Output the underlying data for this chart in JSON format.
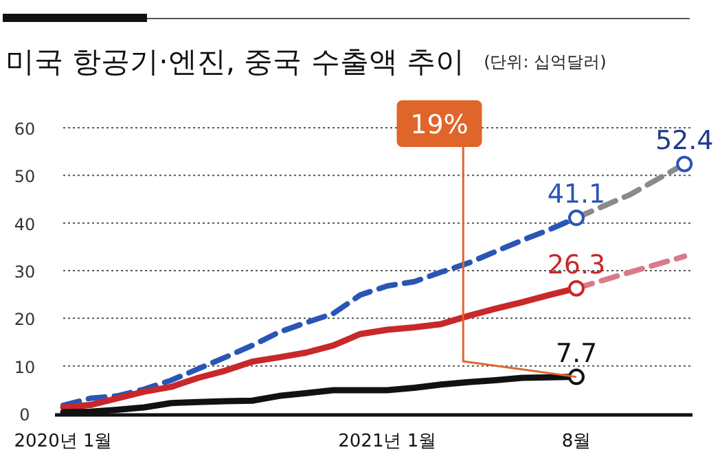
{
  "chart_data": {
    "type": "line",
    "title": "미국 항공기·엔진, 중국 수출액 추이",
    "subtitle": "(단위: 십억달러)",
    "categories": [
      "2020년 1월",
      null,
      null,
      null,
      null,
      null,
      null,
      null,
      null,
      null,
      null,
      null,
      "2021년 1월",
      null,
      null,
      null,
      null,
      null,
      null,
      "8월",
      null,
      null,
      null,
      null
    ],
    "ylim": [
      0,
      60
    ],
    "yticks": [
      0,
      10,
      20,
      30,
      40,
      50,
      60
    ],
    "grid": "y",
    "annotations": [
      {
        "text": "19%",
        "x": "8월",
        "y": 7.7
      }
    ],
    "series": [
      {
        "color": "#2a55b5",
        "line_style": "dashed",
        "values": [
          1.7,
          3.2,
          3.7,
          5.1,
          7.0,
          9.4,
          11.8,
          14.3,
          17.1,
          19.1,
          21.0,
          24.9,
          26.8,
          27.7,
          29.7,
          31.6,
          34.0,
          36.4,
          38.6,
          41.1,
          null,
          null,
          null,
          null
        ],
        "value_labels": [
          null,
          null,
          null,
          null,
          null,
          null,
          null,
          null,
          null,
          null,
          null,
          null,
          null,
          null,
          null,
          null,
          null,
          null,
          null,
          "41.1",
          null,
          null,
          null,
          null
        ]
      },
      {
        "color": "#8a8a8a",
        "line_style": "dashed",
        "values": [
          null,
          null,
          null,
          null,
          null,
          null,
          null,
          null,
          null,
          null,
          null,
          null,
          null,
          null,
          null,
          null,
          null,
          null,
          null,
          41.1,
          null,
          46.0,
          null,
          52.4
        ],
        "value_labels": [
          null,
          null,
          null,
          null,
          null,
          null,
          null,
          null,
          null,
          null,
          null,
          null,
          null,
          null,
          null,
          null,
          null,
          null,
          null,
          null,
          null,
          null,
          null,
          "52.4"
        ]
      },
      {
        "color": "#c8282a",
        "line_style": "solid",
        "values": [
          1.3,
          1.8,
          3.2,
          4.6,
          5.6,
          7.5,
          9.0,
          10.9,
          11.8,
          12.8,
          14.3,
          16.7,
          17.6,
          18.1,
          18.8,
          20.5,
          22.0,
          23.4,
          24.9,
          26.3,
          null,
          null,
          null,
          null
        ],
        "value_labels": [
          null,
          null,
          null,
          null,
          null,
          null,
          null,
          null,
          null,
          null,
          null,
          null,
          null,
          null,
          null,
          null,
          null,
          null,
          null,
          "26.3",
          null,
          null,
          null,
          null
        ]
      },
      {
        "color": "#d97a8a",
        "line_style": "dashed",
        "values": [
          null,
          null,
          null,
          null,
          null,
          null,
          null,
          null,
          null,
          null,
          null,
          null,
          null,
          null,
          null,
          null,
          null,
          null,
          null,
          26.3,
          null,
          29.7,
          null,
          33.0
        ]
      },
      {
        "color": "#111111",
        "line_style": "solid",
        "values": [
          0.3,
          0.4,
          0.8,
          1.3,
          2.2,
          2.4,
          2.6,
          2.7,
          3.7,
          4.3,
          4.9,
          4.9,
          4.9,
          5.4,
          6.1,
          6.6,
          7.0,
          7.5,
          7.6,
          7.7,
          null,
          null,
          null,
          null
        ],
        "value_labels": [
          null,
          null,
          null,
          null,
          null,
          null,
          null,
          null,
          null,
          null,
          null,
          null,
          null,
          null,
          null,
          null,
          null,
          null,
          null,
          "7.7",
          null,
          null,
          null,
          null
        ]
      }
    ]
  }
}
